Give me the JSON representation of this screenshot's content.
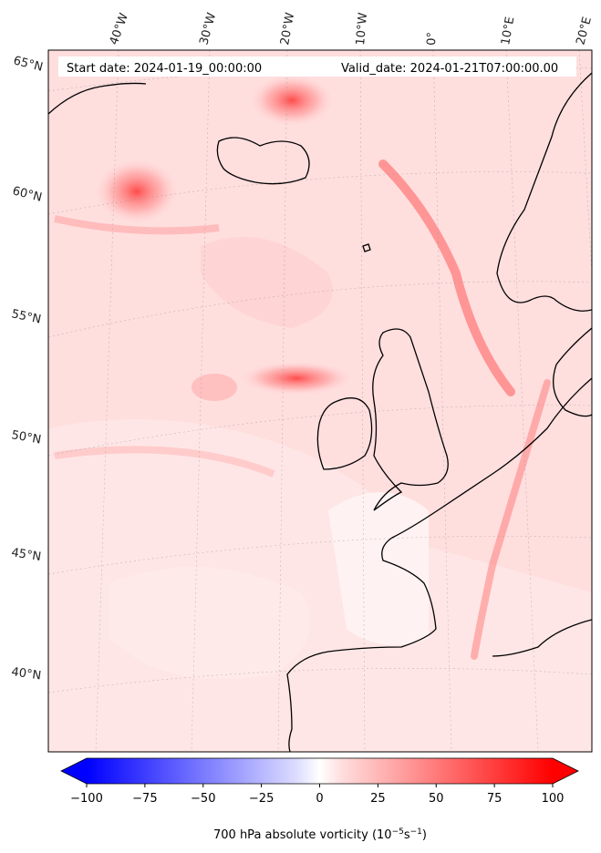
{
  "header": {
    "start_date": "Start date: 2024-01-19_00:00:00",
    "valid_date": "Valid_date: 2024-01-21T07:00:00.00"
  },
  "longitude_labels": [
    "40°W",
    "30°W",
    "20°W",
    "10°W",
    "0°",
    "10°E",
    "20°E"
  ],
  "latitude_labels": [
    "65°N",
    "60°N",
    "55°N",
    "50°N",
    "45°N",
    "40°N"
  ],
  "colorbar": {
    "label": "700 hPa absolute vorticity (10",
    "label_exp": "−5",
    "label_unit": "s",
    "label_exp2": "−1",
    "label_close": ")",
    "ticks": [
      "−100",
      "−75",
      "−50",
      "−25",
      "0",
      "25",
      "50",
      "75",
      "100"
    ],
    "vmin": -100,
    "vmax": 100,
    "colormap": "bwr",
    "extend": "both",
    "low_color": "#0000ff",
    "mid_color": "#ffffff",
    "high_color": "#ff0000"
  },
  "map": {
    "field": "700 hPa absolute vorticity",
    "projection": "lambert-conformal",
    "extent_lon": [
      -45,
      22
    ],
    "extent_lat": [
      37,
      66
    ],
    "coastline_color": "#000000"
  }
}
